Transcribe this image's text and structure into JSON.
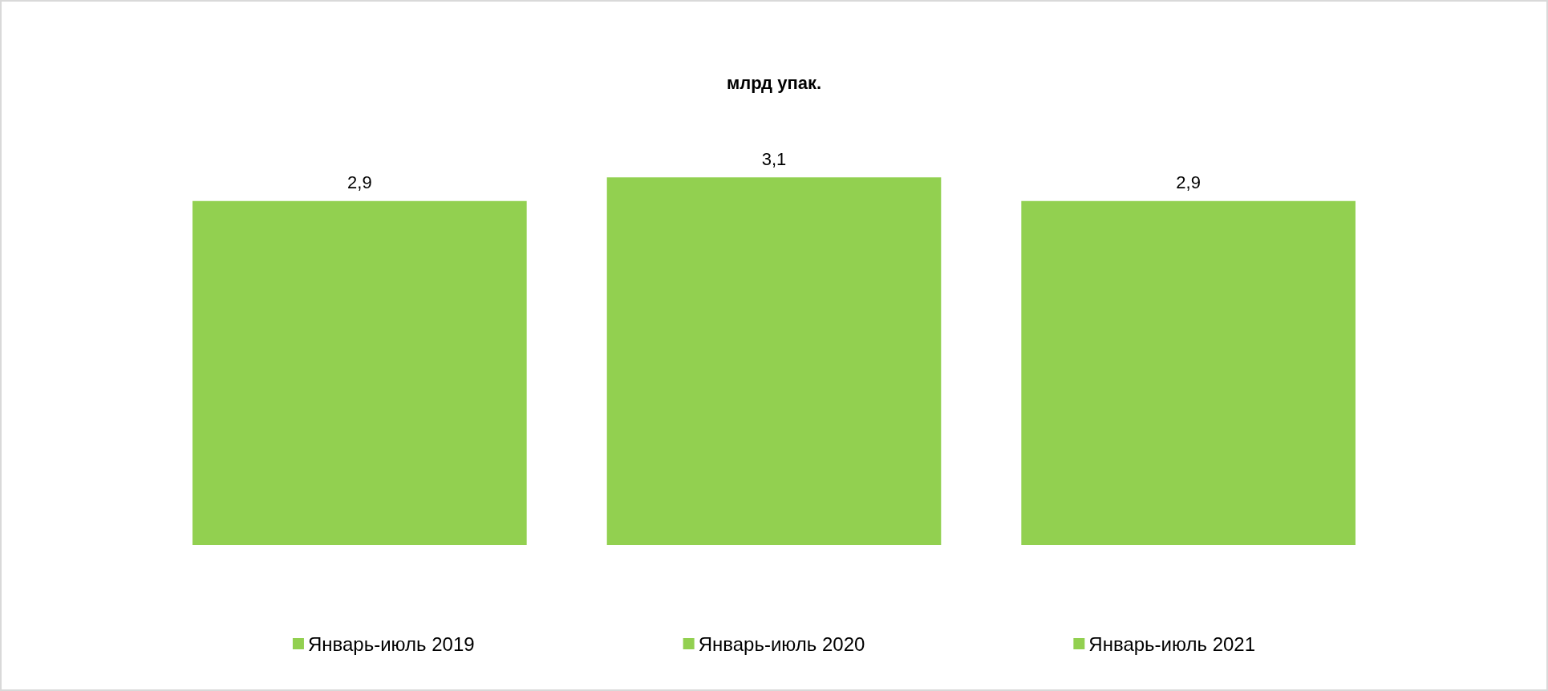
{
  "chart_data": {
    "type": "bar",
    "title": "млрд упак.",
    "categories": [
      null
    ],
    "series": [
      {
        "name": "Январь-июль 2019",
        "color": "#92d050",
        "values": [
          2.9
        ],
        "value_labels": [
          "2,9"
        ]
      },
      {
        "name": "Январь-июль 2020",
        "color": "#92d050",
        "values": [
          3.1
        ],
        "value_labels": [
          "3,1"
        ]
      },
      {
        "name": "Январь-июль 2021",
        "color": "#92d050",
        "values": [
          2.9
        ],
        "value_labels": [
          "2,9"
        ]
      }
    ],
    "legend": "bottom",
    "tick_labels": false
  }
}
